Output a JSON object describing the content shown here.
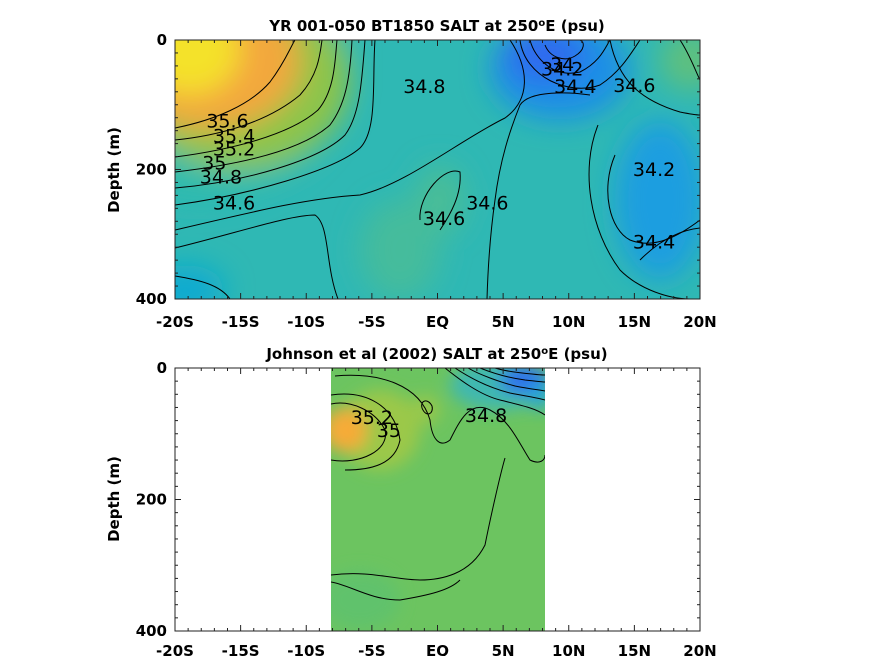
{
  "chart_data": [
    {
      "type": "heatmap",
      "subtype": "filled-contour",
      "title": "YR 001-050 BT1850 SALT at 250",
      "title_superscript": "o",
      "title_suffix": "E (psu)",
      "xlabel": "",
      "ylabel": "Depth (m)",
      "x_ticks": [
        "-20S",
        "-15S",
        "-10S",
        "-5S",
        "EQ",
        "5N",
        "10N",
        "15N",
        "20N"
      ],
      "y_ticks": [
        "0",
        "200",
        "400"
      ],
      "xlim": [
        -20,
        20
      ],
      "ylim": [
        0,
        400
      ],
      "y_reversed": true,
      "colormap": "parula",
      "field_regions": [
        {
          "x": -20,
          "y": 40,
          "value": 35.7
        },
        {
          "x": -16,
          "y": 20,
          "value": 35.6
        },
        {
          "x": -13,
          "y": 10,
          "value": 35.3
        },
        {
          "x": -11,
          "y": 30,
          "value": 35.0
        },
        {
          "x": 2,
          "y": 200,
          "value": 34.65
        },
        {
          "x": 9,
          "y": 50,
          "value": 34.0
        },
        {
          "x": 18,
          "y": 200,
          "value": 34.2
        },
        {
          "x": 10,
          "y": 300,
          "value": 34.55
        },
        {
          "x": -20,
          "y": 370,
          "value": 34.4
        }
      ],
      "contour_labels": [
        {
          "text": "35.6",
          "x": -16,
          "y": 135
        },
        {
          "text": "35.4",
          "x": -15.5,
          "y": 158
        },
        {
          "text": "35.2",
          "x": -15.5,
          "y": 178
        },
        {
          "text": "35",
          "x": -17,
          "y": 200
        },
        {
          "text": "34.8",
          "x": -16.5,
          "y": 222
        },
        {
          "text": "34.6",
          "x": -15.5,
          "y": 262
        },
        {
          "text": "34.8",
          "x": -1,
          "y": 82
        },
        {
          "text": "34.6",
          "x": 0.5,
          "y": 286
        },
        {
          "text": "34.6",
          "x": 3.8,
          "y": 262
        },
        {
          "text": "34",
          "x": 9.5,
          "y": 48
        },
        {
          "text": "34.2",
          "x": 9.5,
          "y": 55
        },
        {
          "text": "34.4",
          "x": 10.5,
          "y": 82
        },
        {
          "text": "34.6",
          "x": 15,
          "y": 80
        },
        {
          "text": "34.2",
          "x": 16.5,
          "y": 210
        },
        {
          "text": "34.4",
          "x": 16.5,
          "y": 322
        }
      ]
    },
    {
      "type": "heatmap",
      "subtype": "filled-contour",
      "title": "Johnson et al (2002) SALT at 250",
      "title_superscript": "o",
      "title_suffix": "E (psu)",
      "xlabel": "",
      "ylabel": "Depth (m)",
      "x_ticks": [
        "-20S",
        "-15S",
        "-10S",
        "-5S",
        "EQ",
        "5N",
        "10N",
        "15N",
        "20N"
      ],
      "y_ticks": [
        "0",
        "200",
        "400"
      ],
      "xlim": [
        -20,
        20
      ],
      "ylim": [
        0,
        400
      ],
      "y_reversed": true,
      "data_xlim": [
        -8,
        8.3
      ],
      "colormap": "parula",
      "field_regions": [
        {
          "x": -7,
          "y": 90,
          "value": 35.3
        },
        {
          "x": -3,
          "y": 70,
          "value": 35.0
        },
        {
          "x": 0,
          "y": 300,
          "value": 34.9
        },
        {
          "x": 8,
          "y": 20,
          "value": 34.0
        },
        {
          "x": 5,
          "y": 60,
          "value": 34.6
        }
      ],
      "contour_labels": [
        {
          "text": "35.2",
          "x": -5,
          "y": 85
        },
        {
          "text": "35",
          "x": -3.7,
          "y": 105
        },
        {
          "text": "34.8",
          "x": 3.7,
          "y": 82
        }
      ]
    }
  ]
}
